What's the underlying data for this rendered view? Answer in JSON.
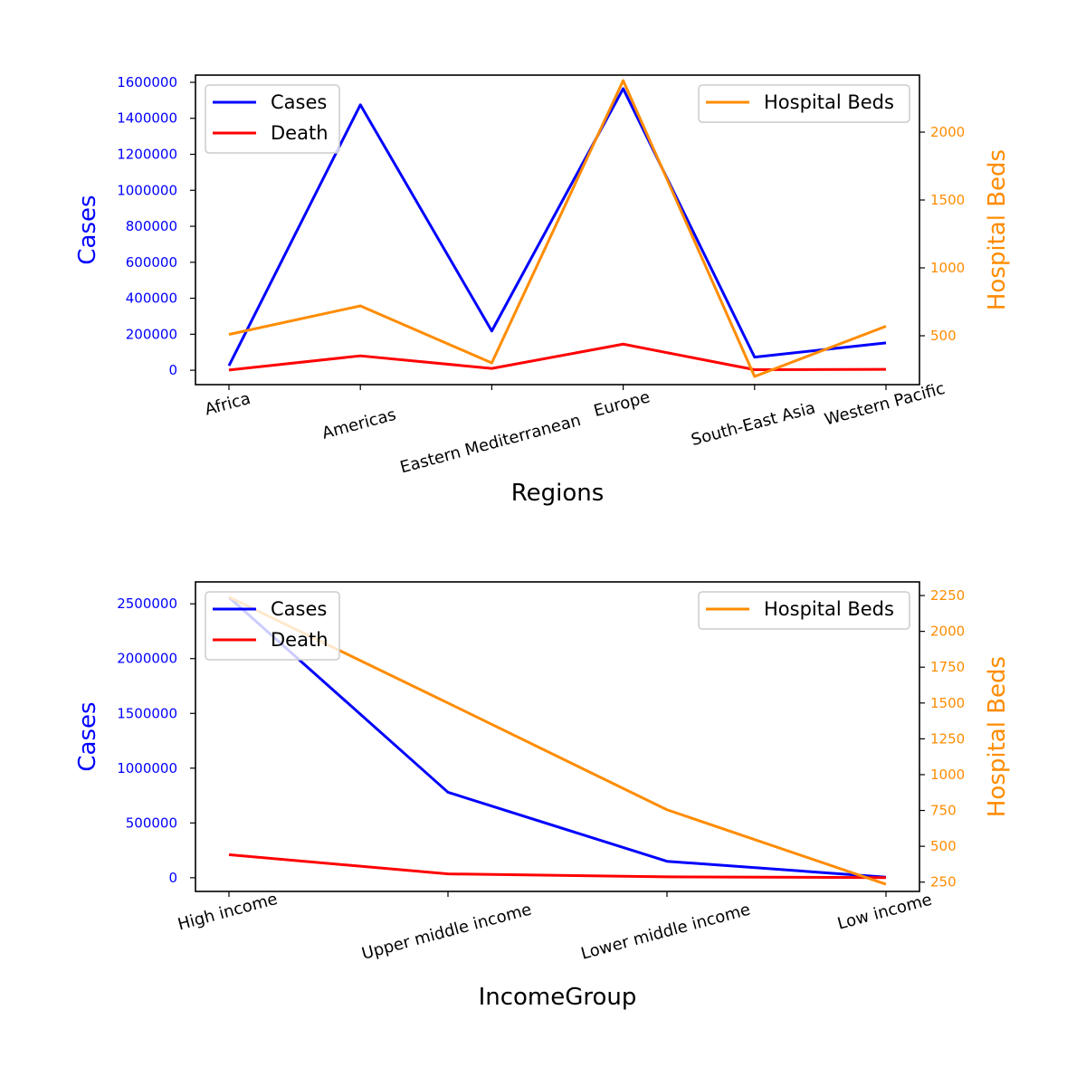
{
  "chart_data": [
    {
      "type": "line",
      "categories": [
        "Africa",
        "Americas",
        "Eastern Mediterranean",
        "Europe",
        "South-East Asia",
        "Western Pacific"
      ],
      "xlabel": "Regions",
      "ylabel": "Cases",
      "y2label": "Hospital Beds",
      "ylim": [
        -80000,
        1640000
      ],
      "y2lim": [
        140,
        2420
      ],
      "yticks": [
        0,
        200000,
        400000,
        600000,
        800000,
        1000000,
        1200000,
        1400000,
        1600000
      ],
      "y2ticks": [
        500,
        1000,
        1500,
        2000
      ],
      "series": [
        {
          "name": "Cases",
          "axis": "left",
          "color": "#0000ff",
          "values": [
            25000,
            1475000,
            218000,
            1565000,
            73000,
            152000
          ]
        },
        {
          "name": "Death",
          "axis": "left",
          "color": "#ff0000",
          "values": [
            1000,
            80000,
            10000,
            145000,
            3000,
            5000
          ]
        }
      ],
      "series2": [
        {
          "name": "Hospital Beds",
          "axis": "right",
          "color": "#ff8c00",
          "values": [
            510,
            720,
            300,
            2380,
            200,
            570
          ]
        }
      ],
      "legend_left": "upper-left",
      "legend_right": "upper-right",
      "grid": false
    },
    {
      "type": "line",
      "categories": [
        "High income",
        "Upper middle income",
        "Lower middle income",
        "Low income"
      ],
      "xlabel": "IncomeGroup",
      "ylabel": "Cases",
      "y2label": "Hospital Beds",
      "ylim": [
        -125000,
        2700000
      ],
      "y2lim": [
        185,
        2345
      ],
      "yticks": [
        0,
        500000,
        1000000,
        1500000,
        2000000,
        2500000
      ],
      "y2ticks": [
        250,
        500,
        750,
        1000,
        1250,
        1500,
        1750,
        2000,
        2250
      ],
      "series": [
        {
          "name": "Cases",
          "axis": "left",
          "color": "#0000ff",
          "values": [
            2560000,
            780000,
            150000,
            5000
          ]
        },
        {
          "name": "Death",
          "axis": "left",
          "color": "#ff0000",
          "values": [
            210000,
            35000,
            8000,
            1000
          ]
        }
      ],
      "series2": [
        {
          "name": "Hospital Beds",
          "axis": "right",
          "color": "#ff8c00",
          "values": [
            2240,
            1500,
            755,
            235
          ]
        }
      ],
      "legend_left": "upper-left",
      "legend_right": "upper-right",
      "grid": false
    }
  ]
}
